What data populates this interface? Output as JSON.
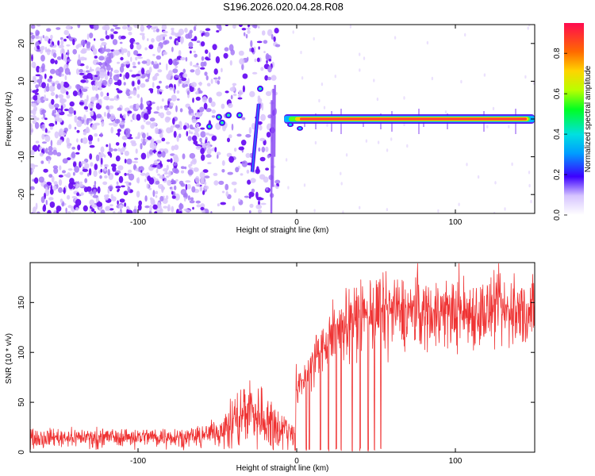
{
  "figure_title": "S196.2026.020.04.28.R08",
  "colors": {
    "signal": "#ef3333",
    "spectrogram_noise": "#7a22f0",
    "line_core": "#ff3b3b"
  },
  "chart_data": [
    {
      "type": "heatmap",
      "xlabel": "Height of straight line (km)",
      "ylabel": "Frequency (Hz)",
      "xlim": [
        -168,
        150
      ],
      "ylim": [
        -25,
        25
      ],
      "xticks": [
        -100,
        0,
        100
      ],
      "xtick_labels": [
        "-100",
        "0",
        "100"
      ],
      "yticks": [
        -20,
        -10,
        0,
        10,
        20
      ],
      "ytick_labels": [
        "-20",
        "-10",
        "0",
        "10",
        "20"
      ],
      "grid": false,
      "description_values": {
        "noise_region_x": [
          -168,
          -12
        ],
        "coherent_line_x": [
          -8,
          150
        ],
        "coherent_line_freq": 0
      },
      "colorbar": {
        "label": "Normalized spectral amplitude",
        "range": [
          0,
          0.95
        ],
        "ticks": [
          0,
          0.2,
          0.4,
          0.6,
          0.8
        ],
        "tick_labels": [
          "0.0",
          "0.2",
          "0.4",
          "0.6",
          "0.8"
        ]
      }
    },
    {
      "type": "line",
      "xlabel": "Height of straight line (km)",
      "ylabel": "SNR (10 * v/v)",
      "xlim": [
        -168,
        150
      ],
      "ylim": [
        0,
        190
      ],
      "xticks": [
        -100,
        0,
        100
      ],
      "xtick_labels": [
        "-100",
        "0",
        "100"
      ],
      "yticks": [
        0,
        50,
        100,
        150
      ],
      "ytick_labels": [
        "0",
        "50",
        "100",
        "150"
      ],
      "grid": false,
      "series": [
        {
          "name": "SNR",
          "trend_x": [
            -168,
            -60,
            -45,
            -30,
            -15,
            -2,
            0,
            10,
            20,
            30,
            50,
            150
          ],
          "trend_y": [
            15,
            16,
            25,
            45,
            30,
            18,
            60,
            90,
            115,
            130,
            140,
            140
          ],
          "dropouts_x": [
            6,
            8,
            15,
            20,
            25,
            28,
            35,
            40,
            45,
            49,
            53
          ]
        }
      ]
    }
  ]
}
